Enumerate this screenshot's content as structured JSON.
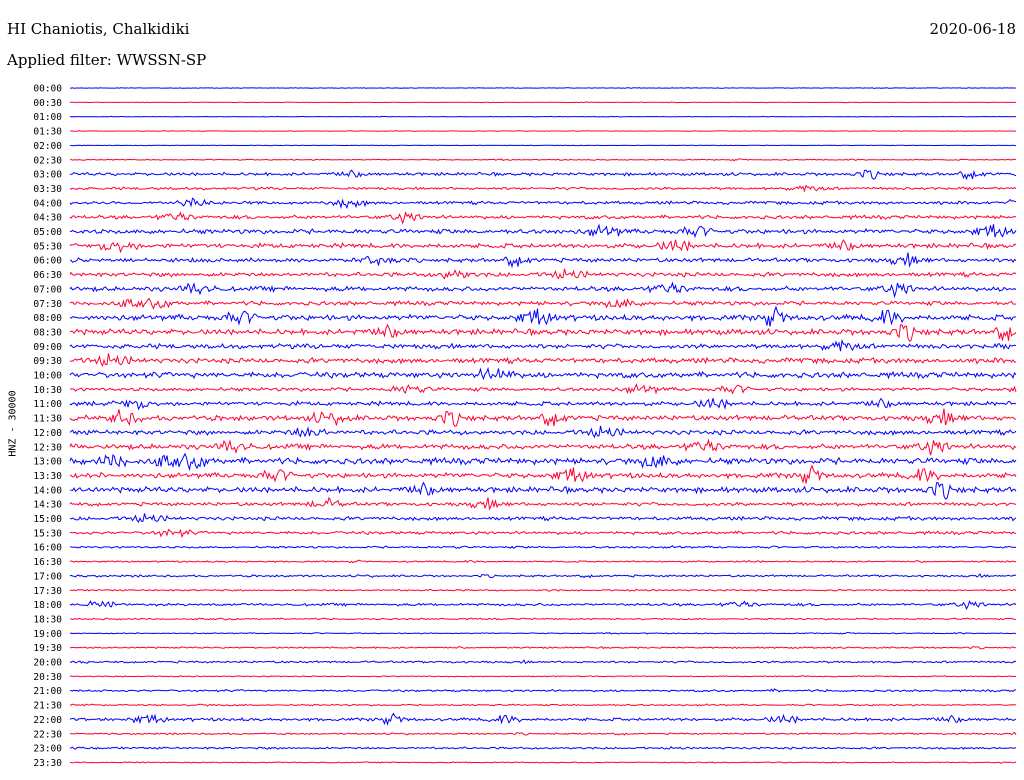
{
  "header": {
    "station": "HI Chaniotis, Chalkidiki",
    "date": "2020-06-18",
    "filter": "Applied filter: WWSSN-SP"
  },
  "chart_data": {
    "type": "line",
    "title": "HI Chaniotis, Chalkidiki",
    "subtitle": "Applied filter: WWSSN-SP",
    "ylabel": "HNZ - 30000",
    "xlabel": "",
    "colors": [
      "#0000ff",
      "#ff0033"
    ],
    "rows": [
      {
        "label": "00:00",
        "amp": 0.05
      },
      {
        "label": "00:30",
        "amp": 0.05
      },
      {
        "label": "01:00",
        "amp": 0.05
      },
      {
        "label": "01:30",
        "amp": 0.05
      },
      {
        "label": "02:00",
        "amp": 0.05
      },
      {
        "label": "02:30",
        "amp": 0.1
      },
      {
        "label": "03:00",
        "amp": 0.3
      },
      {
        "label": "03:30",
        "amp": 0.25
      },
      {
        "label": "04:00",
        "amp": 0.3
      },
      {
        "label": "04:30",
        "amp": 0.35
      },
      {
        "label": "05:00",
        "amp": 0.45
      },
      {
        "label": "05:30",
        "amp": 0.45
      },
      {
        "label": "06:00",
        "amp": 0.4
      },
      {
        "label": "06:30",
        "amp": 0.4
      },
      {
        "label": "07:00",
        "amp": 0.45
      },
      {
        "label": "07:30",
        "amp": 0.4
      },
      {
        "label": "08:00",
        "amp": 0.55
      },
      {
        "label": "08:30",
        "amp": 0.55
      },
      {
        "label": "09:00",
        "amp": 0.45
      },
      {
        "label": "09:30",
        "amp": 0.5
      },
      {
        "label": "10:00",
        "amp": 0.55
      },
      {
        "label": "10:30",
        "amp": 0.35
      },
      {
        "label": "11:00",
        "amp": 0.4
      },
      {
        "label": "11:30",
        "amp": 0.5
      },
      {
        "label": "12:00",
        "amp": 0.45
      },
      {
        "label": "12:30",
        "amp": 0.5
      },
      {
        "label": "13:00",
        "amp": 0.6
      },
      {
        "label": "13:30",
        "amp": 0.5
      },
      {
        "label": "14:00",
        "amp": 0.55
      },
      {
        "label": "14:30",
        "amp": 0.35
      },
      {
        "label": "15:00",
        "amp": 0.35
      },
      {
        "label": "15:30",
        "amp": 0.3
      },
      {
        "label": "16:00",
        "amp": 0.2
      },
      {
        "label": "16:30",
        "amp": 0.15
      },
      {
        "label": "17:00",
        "amp": 0.2
      },
      {
        "label": "17:30",
        "amp": 0.15
      },
      {
        "label": "18:00",
        "amp": 0.25
      },
      {
        "label": "18:30",
        "amp": 0.15
      },
      {
        "label": "19:00",
        "amp": 0.1
      },
      {
        "label": "19:30",
        "amp": 0.15
      },
      {
        "label": "20:00",
        "amp": 0.2
      },
      {
        "label": "20:30",
        "amp": 0.1
      },
      {
        "label": "21:00",
        "amp": 0.2
      },
      {
        "label": "21:30",
        "amp": 0.15
      },
      {
        "label": "22:00",
        "amp": 0.3
      },
      {
        "label": "22:30",
        "amp": 0.15
      },
      {
        "label": "23:00",
        "amp": 0.2
      },
      {
        "label": "23:30",
        "amp": 0.1
      }
    ]
  }
}
